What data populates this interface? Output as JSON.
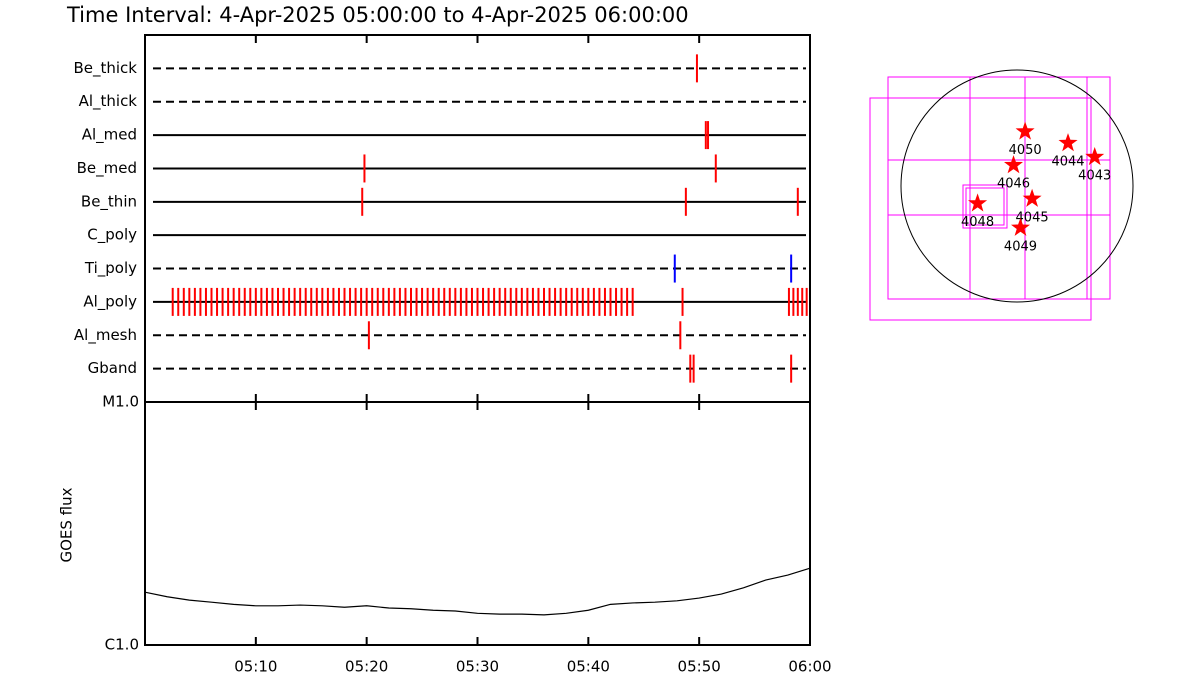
{
  "title": "Time Interval:  4-Apr-2025 05:00:00 to  4-Apr-2025 06:00:00",
  "chart_data": [
    {
      "type": "timeline",
      "categories": [
        "Be_thick",
        "Al_thick",
        "Al_med",
        "Be_med",
        "Be_thin",
        "C_poly",
        "Ti_poly",
        "Al_poly",
        "Al_mesh",
        "Gband"
      ],
      "line_styles": [
        "dashed",
        "dashed",
        "solid",
        "solid",
        "solid",
        "solid",
        "dashed",
        "solid",
        "dashed",
        "dashed"
      ],
      "colors": [
        "#ff0000",
        "#ff0000",
        "#ff0000",
        "#ff0000",
        "#ff0000",
        "#ff0000",
        "#0000ff",
        "#ff0000",
        "#ff0000",
        "#ff0000"
      ],
      "events": [
        [
          49.8
        ],
        [],
        [
          50.6,
          50.8
        ],
        [
          19.8,
          51.5
        ],
        [
          19.6,
          48.8,
          58.9
        ],
        [],
        [
          47.8,
          58.3
        ],
        [
          2.5,
          3,
          3.5,
          4,
          4.5,
          5,
          5.5,
          6,
          6.5,
          7,
          7.5,
          8,
          8.5,
          9,
          9.5,
          10,
          10.5,
          11,
          11.5,
          12,
          12.5,
          13,
          13.5,
          14,
          14.5,
          15,
          15.5,
          16,
          16.5,
          17,
          17.5,
          18,
          18.5,
          19,
          19.5,
          20,
          20.5,
          21,
          21.5,
          22,
          22.5,
          23,
          23.5,
          24,
          24.5,
          25,
          25.5,
          26,
          26.5,
          27,
          27.5,
          28,
          28.5,
          29,
          29.5,
          30,
          30.5,
          31,
          31.5,
          32,
          32.5,
          33,
          33.5,
          34,
          34.5,
          35,
          35.5,
          36,
          36.5,
          37,
          37.5,
          38,
          38.5,
          39,
          39.5,
          40,
          40.5,
          41,
          41.5,
          42,
          42.5,
          43,
          43.5,
          44,
          48.5,
          58.1,
          58.5,
          58.9,
          59.3,
          59.7
        ],
        [
          20.2,
          48.3
        ],
        [
          49.2,
          49.5,
          58.3
        ]
      ],
      "xlim": [
        0,
        60
      ]
    },
    {
      "type": "line",
      "ylabel": "GOES flux",
      "x": [
        0,
        2,
        4,
        6,
        8,
        10,
        12,
        14,
        16,
        18,
        20,
        22,
        24,
        26,
        28,
        30,
        32,
        34,
        36,
        38,
        40,
        42,
        44,
        46,
        48,
        50,
        52,
        54,
        56,
        58,
        60
      ],
      "values": [
        1.65,
        1.58,
        1.53,
        1.5,
        1.47,
        1.45,
        1.45,
        1.46,
        1.45,
        1.43,
        1.45,
        1.42,
        1.41,
        1.39,
        1.38,
        1.35,
        1.34,
        1.34,
        1.33,
        1.35,
        1.39,
        1.47,
        1.49,
        1.5,
        1.52,
        1.56,
        1.62,
        1.72,
        1.85,
        1.94,
        2.07
      ],
      "color": "#000000",
      "xlim": [
        0,
        60
      ],
      "xticks": [
        {
          "value": 10,
          "label": "05:10"
        },
        {
          "value": 20,
          "label": "05:20"
        },
        {
          "value": 30,
          "label": "05:30"
        },
        {
          "value": 40,
          "label": "05:40"
        },
        {
          "value": 50,
          "label": "05:50"
        },
        {
          "value": 60,
          "label": "06:00"
        }
      ],
      "ylim": [
        1,
        10
      ],
      "yticks": [
        {
          "value": 1,
          "label": "C1.0"
        },
        {
          "value": 10,
          "label": "M1.0"
        }
      ],
      "log_scale": true
    },
    {
      "type": "scatter",
      "labels": [
        "4050",
        "4044",
        "4043",
        "4046",
        "4045",
        "4048",
        "4049"
      ],
      "x": [
        0.07,
        0.44,
        0.67,
        -0.03,
        0.13,
        -0.34,
        0.03
      ],
      "y": [
        0.47,
        0.37,
        0.25,
        0.18,
        -0.11,
        -0.15,
        -0.36
      ],
      "color": "#ff0000"
    }
  ]
}
